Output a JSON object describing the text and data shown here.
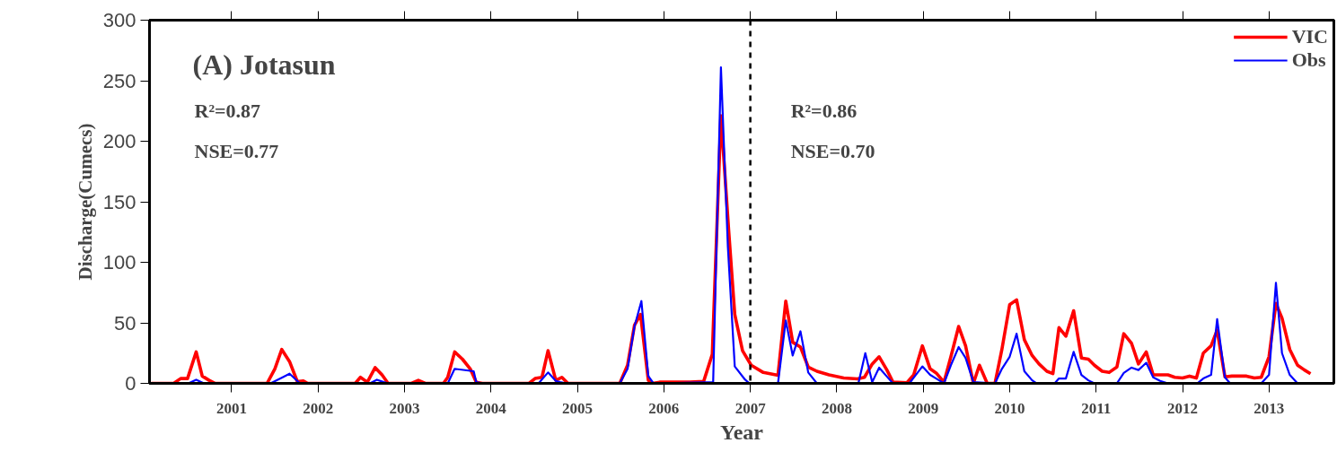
{
  "chart_data": {
    "type": "line",
    "title": "(A) Jotasun",
    "xlabel": "Year",
    "ylabel": "Discharge(Cumecs)",
    "xlim": [
      2000.05,
      2013.75
    ],
    "xticks": [
      2001,
      2002,
      2003,
      2004,
      2005,
      2006,
      2007,
      2008,
      2009,
      2010,
      2011,
      2012,
      2013
    ],
    "ylim": [
      0,
      300
    ],
    "yticks": [
      0,
      50,
      100,
      150,
      200,
      250,
      300
    ],
    "grid": false,
    "legend": "top right",
    "line_style": "solid",
    "marker": "none",
    "annotations": [
      "R²=0.87",
      "NSE=0.77",
      "R²=0.86",
      "NSE=0.70"
    ],
    "ref_lines": [
      {
        "axis": "x",
        "value": 2007,
        "color": "#000000",
        "line_style": "dashed"
      }
    ],
    "series": [
      {
        "name": "VIC",
        "color": "#ff0000",
        "x": [
          2000.07,
          2000.33,
          2000.41,
          2000.49,
          2000.59,
          2000.66,
          2000.74,
          2000.81,
          2001.41,
          2001.5,
          2001.58,
          2001.67,
          2001.76,
          2001.83,
          2001.88,
          2002.43,
          2002.49,
          2002.57,
          2002.66,
          2002.74,
          2002.81,
          2003.08,
          2003.16,
          2003.24,
          2003.45,
          2003.5,
          2003.58,
          2003.67,
          2003.76,
          2003.83,
          2003.9,
          2004.44,
          2004.51,
          2004.59,
          2004.66,
          2004.75,
          2004.82,
          2004.89,
          2005.49,
          2005.58,
          2005.66,
          2005.73,
          2005.82,
          2005.87,
          2005.95,
          2006.3,
          2006.46,
          2006.56,
          2006.66,
          2006.75,
          2006.82,
          2006.91,
          2007.01,
          2007.15,
          2007.32,
          2007.41,
          2007.49,
          2007.58,
          2007.67,
          2007.77,
          2007.91,
          2008.08,
          2008.24,
          2008.32,
          2008.41,
          2008.49,
          2008.58,
          2008.65,
          2008.81,
          2008.89,
          2008.99,
          2009.08,
          2009.15,
          2009.24,
          2009.32,
          2009.41,
          2009.49,
          2009.58,
          2009.65,
          2009.74,
          2009.83,
          2009.91,
          2010.0,
          2010.08,
          2010.17,
          2010.26,
          2010.34,
          2010.43,
          2010.5,
          2010.57,
          2010.65,
          2010.74,
          2010.83,
          2010.91,
          2010.98,
          2011.07,
          2011.15,
          2011.24,
          2011.32,
          2011.41,
          2011.49,
          2011.58,
          2011.66,
          2011.74,
          2011.83,
          2011.91,
          2012.0,
          2012.08,
          2012.16,
          2012.24,
          2012.33,
          2012.4,
          2012.49,
          2012.57,
          2012.66,
          2012.74,
          2012.83,
          2012.91,
          2013.0,
          2013.08,
          2013.15,
          2013.24,
          2013.33,
          2013.41,
          2013.48
        ],
        "values": [
          0,
          0,
          4,
          4,
          26,
          6,
          2.5,
          0,
          0,
          12,
          28,
          18,
          1.5,
          2,
          0,
          0,
          5,
          1,
          13,
          7,
          0,
          0,
          2.5,
          0,
          0,
          5,
          26,
          20,
          12,
          1,
          0,
          0,
          4,
          5,
          27,
          2.5,
          5,
          0,
          0,
          15,
          48,
          57,
          2.5,
          0,
          1,
          1,
          1.6,
          24,
          221,
          126,
          57,
          27,
          15,
          9,
          6.7,
          68,
          34,
          30,
          13.5,
          10,
          7,
          4.4,
          3.7,
          5,
          16,
          22,
          11,
          1,
          0.5,
          7,
          31,
          12,
          8.6,
          1,
          22,
          47,
          31,
          0,
          15,
          0,
          0,
          28,
          65,
          69,
          36,
          23,
          16,
          10,
          8,
          46,
          39,
          60,
          21,
          20,
          15,
          10,
          9,
          13.5,
          41,
          33,
          16,
          26,
          7,
          7,
          7,
          5,
          4.4,
          6,
          4.4,
          25,
          31,
          44,
          5.4,
          6,
          6,
          6,
          4.4,
          5,
          22,
          66,
          54,
          28,
          15,
          11,
          8
        ]
      },
      {
        "name": "Obs",
        "color": "#0000ff",
        "x": [
          2000.07,
          2000.5,
          2000.59,
          2000.68,
          2001.45,
          2001.59,
          2001.67,
          2001.79,
          2002.6,
          2002.68,
          2002.76,
          2002.81,
          2003.5,
          2003.58,
          2003.8,
          2003.83,
          2003.9,
          2004.55,
          2004.66,
          2004.75,
          2004.8,
          2004.87,
          2005.49,
          2005.58,
          2005.66,
          2005.74,
          2005.82,
          2005.88,
          2006.57,
          2006.66,
          2006.74,
          2006.82,
          2006.94,
          2006.99,
          2007.32,
          2007.41,
          2007.49,
          2007.58,
          2007.67,
          2007.77,
          2008.25,
          2008.33,
          2008.41,
          2008.49,
          2008.6,
          2008.65,
          2008.84,
          2008.99,
          2009.08,
          2009.15,
          2009.24,
          2009.32,
          2009.41,
          2009.49,
          2009.58,
          2009.83,
          2009.91,
          2010.0,
          2010.08,
          2010.17,
          2010.26,
          2010.31,
          2010.52,
          2010.57,
          2010.65,
          2010.74,
          2010.83,
          2010.91,
          2010.98,
          2011.24,
          2011.32,
          2011.41,
          2011.49,
          2011.58,
          2011.66,
          2011.74,
          2011.83,
          2012.17,
          2012.24,
          2012.33,
          2012.4,
          2012.49,
          2012.55,
          2012.91,
          2013.0,
          2013.08,
          2013.15,
          2013.24,
          2013.33
        ],
        "values": [
          0,
          0,
          3,
          0,
          0,
          5,
          8,
          0,
          0,
          3,
          1,
          0,
          0,
          12,
          10,
          1,
          0,
          0,
          9,
          2,
          1,
          0,
          0,
          12,
          47,
          68,
          6,
          0,
          1,
          261,
          113,
          14,
          3,
          0,
          0,
          52,
          23,
          43,
          9,
          0,
          0,
          25,
          1,
          13,
          4,
          0,
          0,
          14,
          7,
          4,
          0,
          15,
          30,
          21,
          1,
          0,
          12,
          22,
          41,
          10,
          2.5,
          0,
          0,
          4,
          4,
          26,
          7,
          2.5,
          0,
          0,
          8.6,
          13,
          11,
          17,
          5,
          2,
          0,
          0,
          4,
          7,
          53,
          5,
          0,
          0,
          7,
          83,
          25,
          7,
          0
        ]
      }
    ]
  }
}
